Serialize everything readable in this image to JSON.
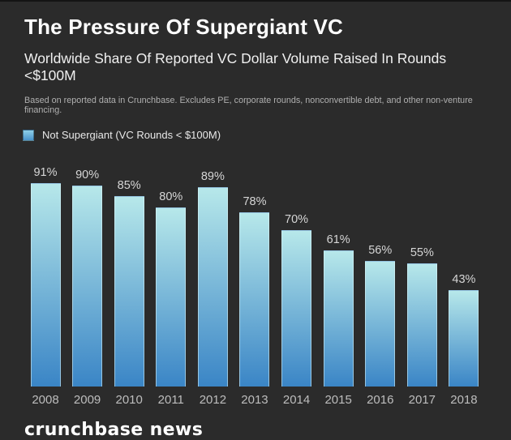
{
  "header": {
    "title": "The Pressure Of Supergiant VC",
    "subtitle": "Worldwide Share Of Reported VC Dollar Volume Raised In Rounds <$100M",
    "footnote": "Based on reported data in Crunchbase. Excludes PE, corporate rounds, nonconvertible debt, and other non-venture financing."
  },
  "legend": {
    "label": "Not Supergiant (VC Rounds < $100M)",
    "swatch_top_color": "#8ecfe8",
    "swatch_bottom_color": "#4a94cc"
  },
  "chart_data": {
    "type": "bar",
    "title": "The Pressure Of Supergiant VC",
    "subtitle": "Worldwide Share Of Reported VC Dollar Volume Raised In Rounds <$100M",
    "categories": [
      "2008",
      "2009",
      "2010",
      "2011",
      "2012",
      "2013",
      "2014",
      "2015",
      "2016",
      "2017",
      "2018"
    ],
    "series": [
      {
        "name": "Not Supergiant (VC Rounds < $100M)",
        "values": [
          91,
          90,
          85,
          80,
          89,
          78,
          70,
          61,
          56,
          55,
          43
        ]
      }
    ],
    "value_suffix": "%",
    "xlabel": "",
    "ylabel": "",
    "ylim": [
      0,
      100
    ],
    "grid": false,
    "legend_position": "top-left",
    "bar_gradient_top": "#b7e8ea",
    "bar_gradient_bottom": "#3a85c6"
  },
  "colors": {
    "background": "#2b2b2b",
    "title_text": "#ffffff",
    "subtitle_text": "#f0f0f0",
    "footnote_text": "#b0b0b0",
    "value_label_text": "#d6d6d6",
    "axis_label_text": "#bdbdbd"
  },
  "footer": {
    "brand": "crunchbase news"
  }
}
